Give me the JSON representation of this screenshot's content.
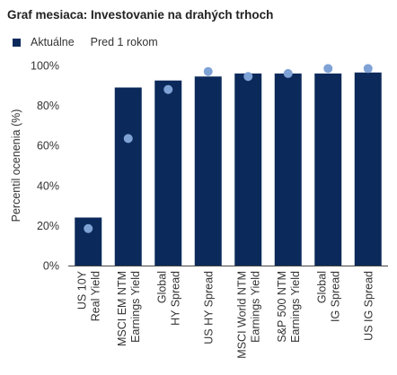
{
  "chart_data": {
    "type": "bar",
    "title": "Graf mesiaca: Investovanie na drahých trhoch",
    "ylabel": "Percentil ocenenia (%)",
    "xlabel": "",
    "ylim": [
      0,
      100
    ],
    "yticks": [
      0,
      20,
      40,
      60,
      80,
      100
    ],
    "ytick_labels": [
      "0%",
      "20%",
      "40%",
      "60%",
      "80%",
      "100%"
    ],
    "categories": [
      [
        "US 10Y",
        "Real Yield"
      ],
      [
        "MSCI EM NTM",
        "Earnings Yield"
      ],
      [
        "Global",
        "HY Spread"
      ],
      [
        "US HY Spread"
      ],
      [
        "MSCI World NTM",
        "Earnings Yield"
      ],
      [
        "S&P 500 NTM",
        "Earnings Yield"
      ],
      [
        "Global",
        "IG Spread"
      ],
      [
        "US IG Spread"
      ]
    ],
    "series": [
      {
        "name": "Aktuálne",
        "style": "bar",
        "color": "#0b2a5b",
        "values": [
          24,
          89,
          92.5,
          94.5,
          96,
          96,
          96,
          96.5
        ]
      },
      {
        "name": "Pred 1 rokom",
        "style": "dot",
        "color": "#7fa2d6",
        "values": [
          18.5,
          63.5,
          88,
          97,
          94.5,
          96,
          98.5,
          98.5
        ]
      }
    ],
    "grid": false,
    "legend": "top-left"
  }
}
